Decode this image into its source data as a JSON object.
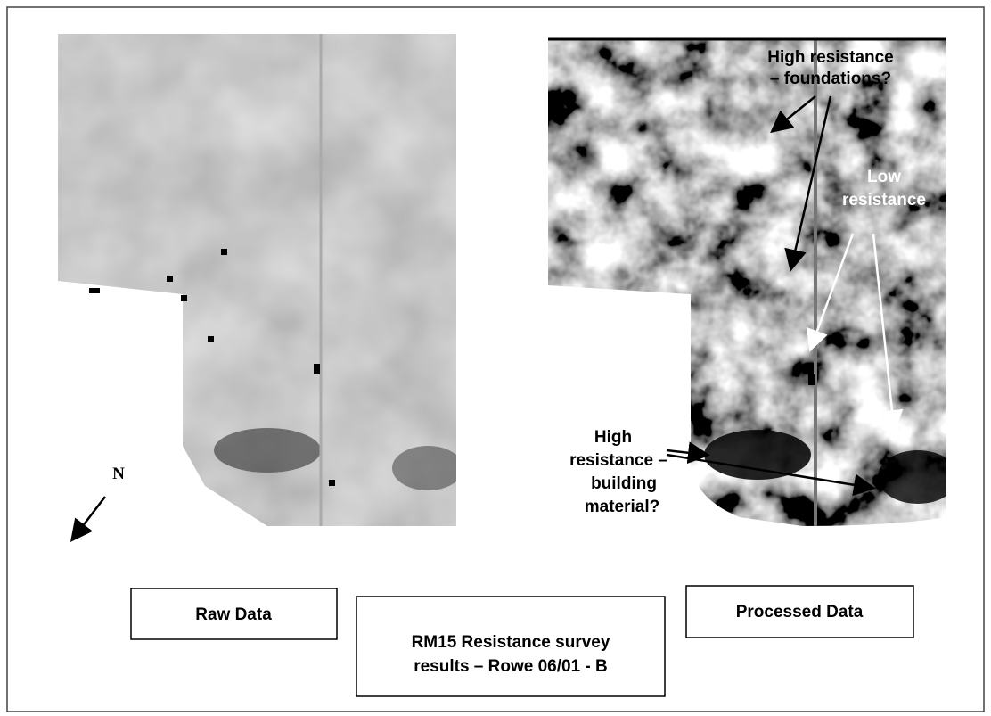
{
  "panels": {
    "left": "Raw Data",
    "right": "Processed Data"
  },
  "caption": [
    "RM15 Resistance survey",
    "results – Rowe 06/01 - B"
  ],
  "north": "N",
  "annotations": [
    {
      "lines": [
        "High resistance",
        "– foundations?"
      ]
    },
    {
      "lines": [
        "Low",
        "resistance"
      ]
    },
    {
      "lines": [
        "High",
        "resistance –",
        "building",
        "material?"
      ]
    }
  ]
}
